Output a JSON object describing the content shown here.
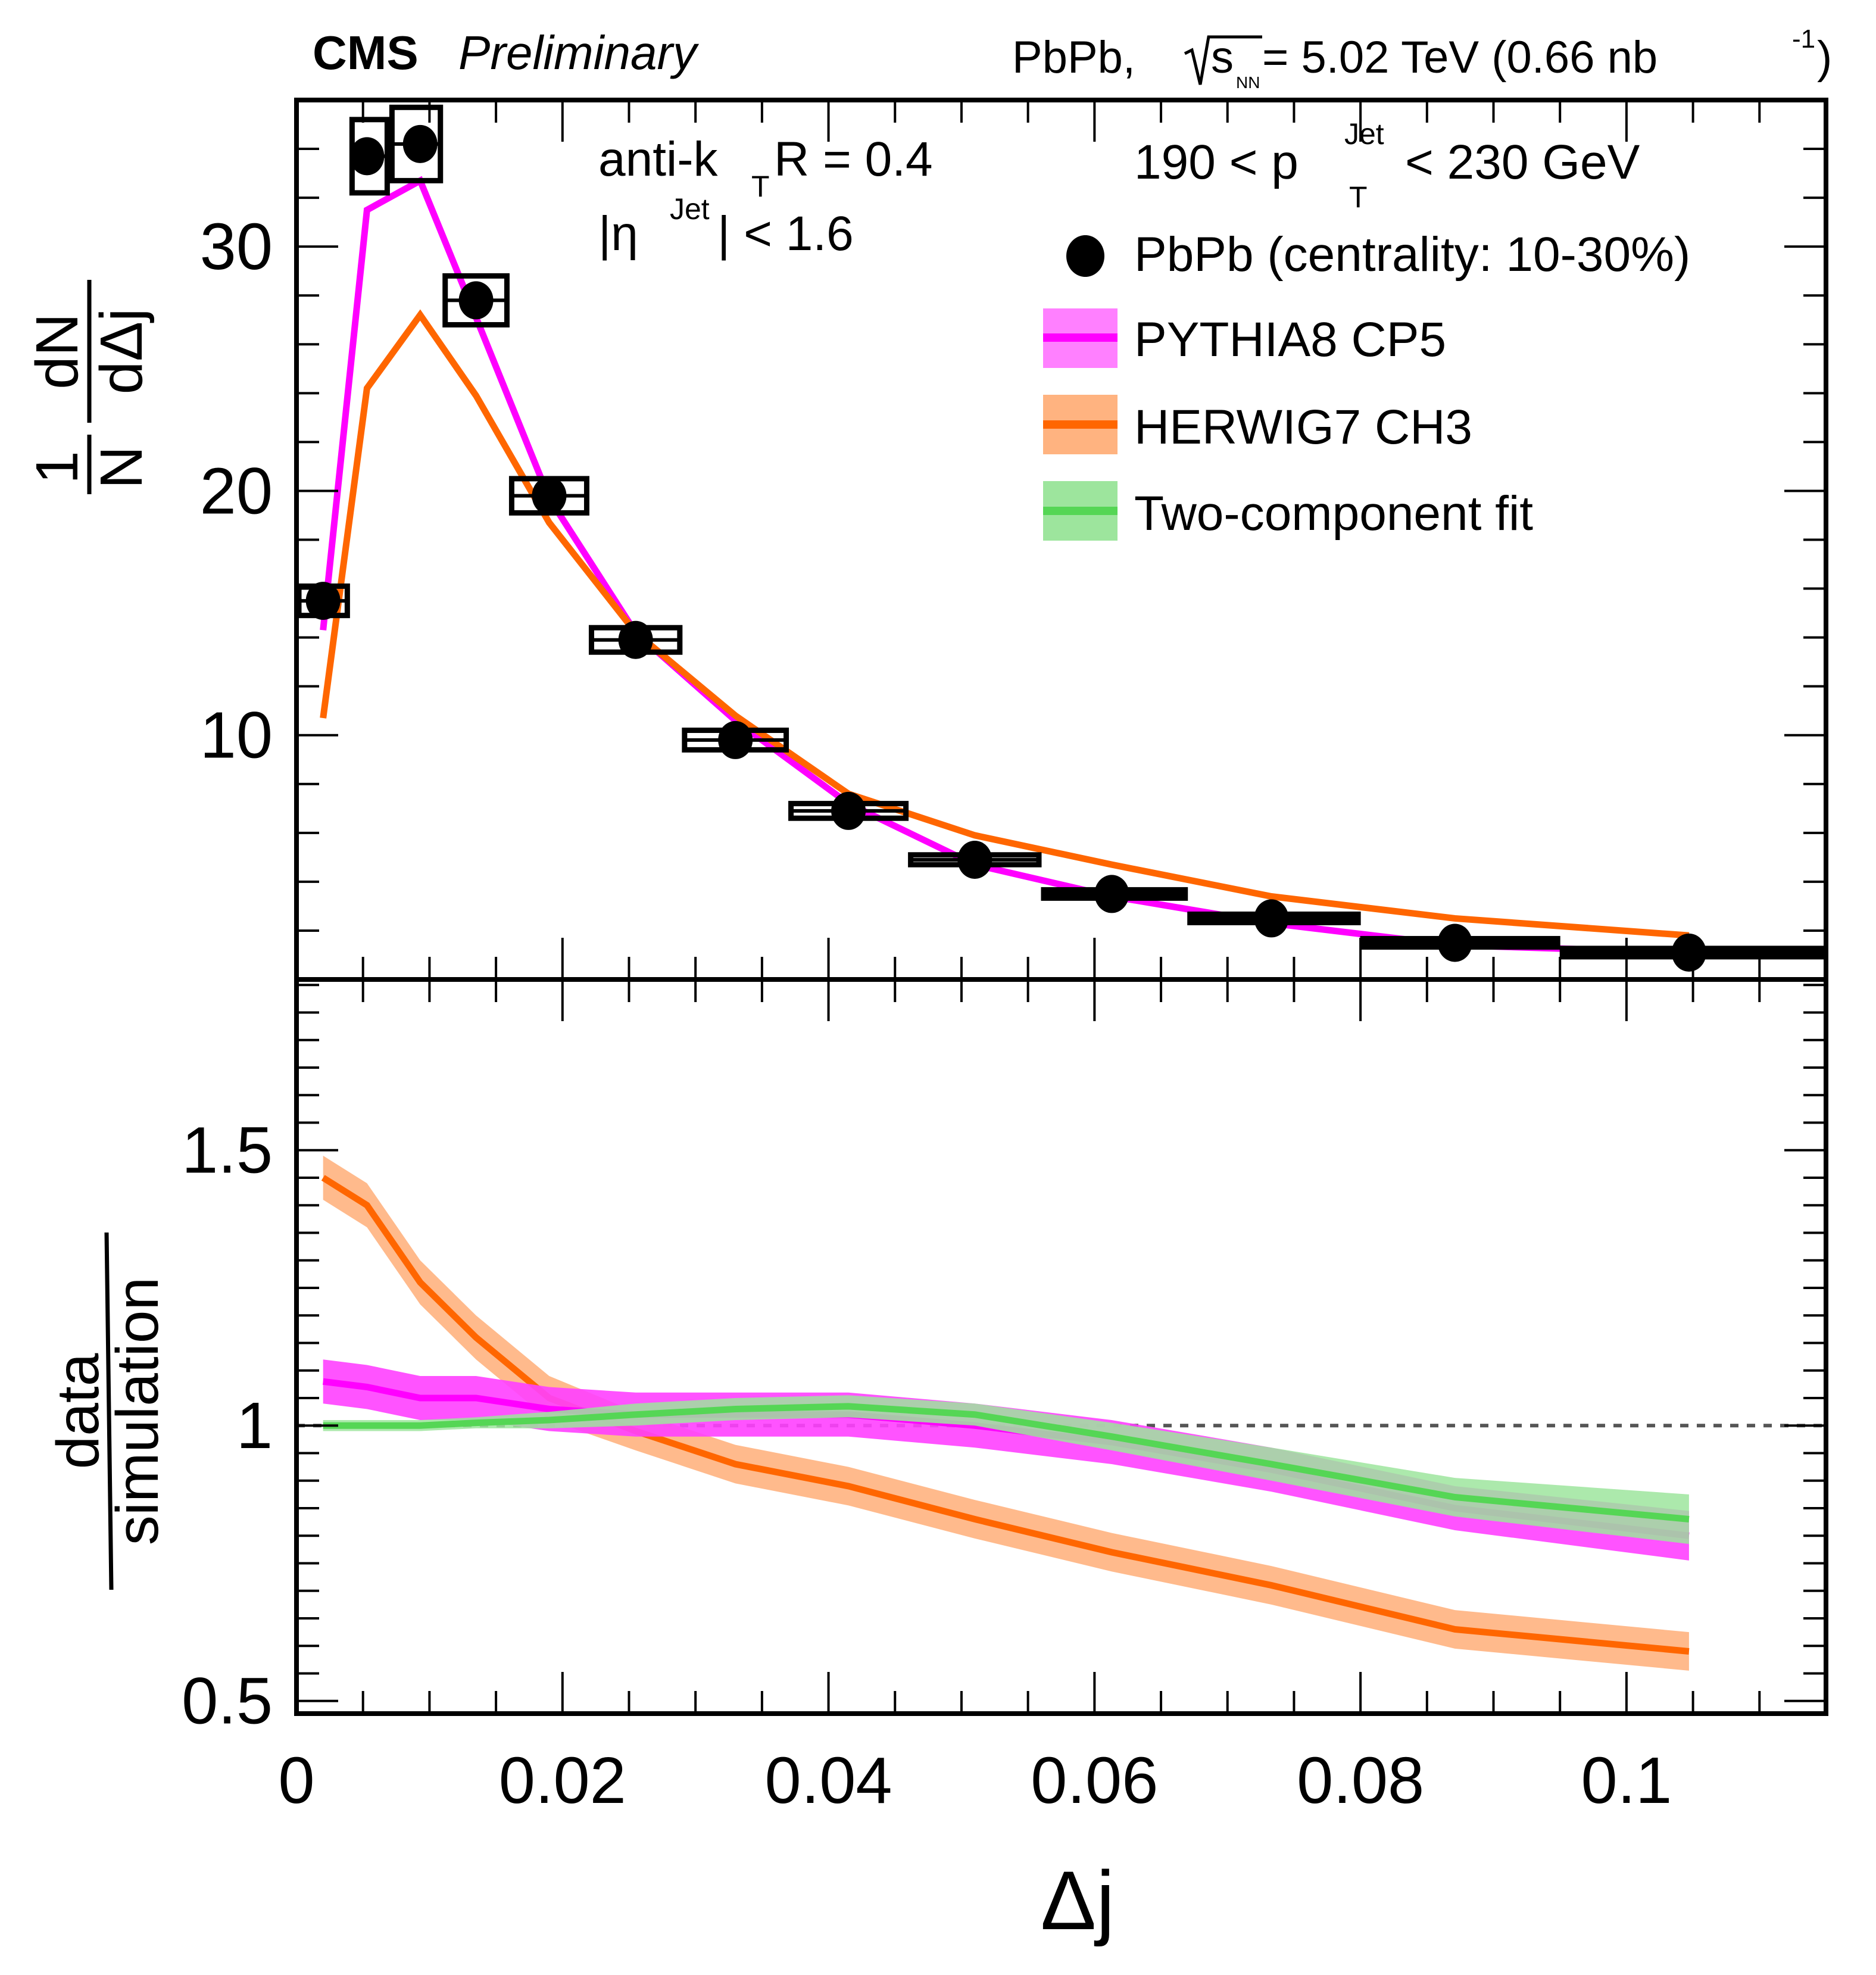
{
  "header": {
    "experiment": "CMS",
    "status": "Preliminary",
    "collision": "PbPb, ",
    "sqrt_s_symbol": "s",
    "sqrt_s_sub": "NN",
    "energy": " = 5.02 TeV (0.66 nb",
    "lumi_sup": "-1",
    "lumi_close": ")"
  },
  "annotations": {
    "algo_prefix": "anti-k",
    "algo_sub": "T",
    "algo_suffix": " R = 0.4",
    "eta_prefix": "|η",
    "eta_sup": "Jet",
    "eta_suffix": "| < 1.6",
    "pt_prefix": "190 < p",
    "pt_sup": "Jet",
    "pt_sub": "T",
    "pt_suffix": " < 230 GeV"
  },
  "legend": [
    {
      "label": "PbPb (centrality: 10-30%)",
      "kind": "marker",
      "color": "#000000"
    },
    {
      "label": "PYTHIA8 CP5",
      "kind": "band",
      "color": "#ff00ff",
      "band_color": "#ff80ff"
    },
    {
      "label": "HERWIG7 CH3",
      "kind": "band",
      "color": "#ff6600",
      "band_color": "#ffb380"
    },
    {
      "label": "Two-component fit",
      "kind": "band",
      "color": "#55d655",
      "band_color": "#9de59d"
    }
  ],
  "chart_data": [
    {
      "type": "scatter",
      "panel": "upper",
      "title": "",
      "xlabel": "Δj",
      "ylabel_num": "1",
      "ylabel_den": "N",
      "ylabel_num2": "dN",
      "ylabel_den2": "dΔj",
      "xlim": [
        0,
        0.115
      ],
      "ylim": [
        0,
        36
      ],
      "yticks": [
        10,
        20,
        30
      ],
      "ytick_labels": [
        "10",
        "20",
        "30"
      ],
      "legend_position": "top-right",
      "bin_edges": [
        0,
        0.004,
        0.007,
        0.011,
        0.016,
        0.022,
        0.029,
        0.037,
        0.046,
        0.056,
        0.067,
        0.08,
        0.095,
        0.115
      ],
      "x": [
        0.002,
        0.0053,
        0.0093,
        0.0135,
        0.019,
        0.0255,
        0.033,
        0.0415,
        0.051,
        0.0613,
        0.0733,
        0.0871,
        0.1047
      ],
      "series": [
        {
          "name": "PbPb (centrality: 10-30%)",
          "kind": "data",
          "values": [
            15.5,
            33.7,
            34.2,
            27.8,
            19.8,
            13.9,
            9.8,
            6.9,
            4.9,
            3.5,
            2.5,
            1.5,
            1.1
          ],
          "syst": [
            0.6,
            1.5,
            1.5,
            1.0,
            0.7,
            0.5,
            0.4,
            0.3,
            0.2,
            0.15,
            0.12,
            0.1,
            0.08
          ]
        },
        {
          "name": "PYTHIA8 CP5",
          "kind": "line",
          "color": "#ff00ff",
          "values": [
            14.3,
            31.5,
            32.7,
            27.1,
            19.7,
            14.2,
            10.6,
            7.2,
            4.7,
            3.4,
            2.3,
            1.4,
            1.1
          ]
        },
        {
          "name": "HERWIG7 CH3",
          "kind": "line",
          "color": "#ff6600",
          "values": [
            10.7,
            24.2,
            27.2,
            23.9,
            18.7,
            14.2,
            10.8,
            7.6,
            5.9,
            4.7,
            3.4,
            2.5,
            1.8
          ]
        }
      ]
    },
    {
      "type": "area",
      "panel": "lower",
      "xlabel": "Δj",
      "ylabel_num": "data",
      "ylabel_den": "simulation",
      "xlim": [
        0,
        0.115
      ],
      "ylim": [
        0.477,
        1.81
      ],
      "yticks": [
        0.5,
        1,
        1.5
      ],
      "ytick_labels": [
        "0.5",
        "1",
        "1.5"
      ],
      "xticks": [
        0,
        0.02,
        0.04,
        0.06,
        0.08,
        0.1
      ],
      "xtick_labels": [
        "0",
        "0.02",
        "0.04",
        "0.06",
        "0.08",
        "0.1"
      ],
      "reference_line": 1,
      "x": [
        0.002,
        0.0053,
        0.0093,
        0.0135,
        0.019,
        0.0255,
        0.033,
        0.0415,
        0.051,
        0.0613,
        0.0733,
        0.0871,
        0.1047
      ],
      "series": [
        {
          "name": "HERWIG7 CH3",
          "color": "#ff6600",
          "band_color": "#ffb380",
          "values": [
            1.45,
            1.4,
            1.26,
            1.16,
            1.05,
            0.99,
            0.93,
            0.89,
            0.83,
            0.77,
            0.71,
            0.63,
            0.59
          ],
          "unc": [
            0.04,
            0.04,
            0.04,
            0.04,
            0.04,
            0.035,
            0.035,
            0.035,
            0.035,
            0.035,
            0.035,
            0.035,
            0.035
          ]
        },
        {
          "name": "PYTHIA8 CP5",
          "color": "#ff00ff",
          "band_color": "#ff40ff",
          "values": [
            1.08,
            1.07,
            1.05,
            1.05,
            1.03,
            1.02,
            1.02,
            1.02,
            1.0,
            0.97,
            0.92,
            0.85,
            0.8
          ],
          "unc": [
            0.04,
            0.04,
            0.04,
            0.04,
            0.04,
            0.04,
            0.04,
            0.04,
            0.04,
            0.04,
            0.04,
            0.04,
            0.045
          ]
        },
        {
          "name": "Two-component fit",
          "color": "#55d655",
          "band_color": "#9de59d",
          "values": [
            1.0,
            1.0,
            1.0,
            1.005,
            1.01,
            1.02,
            1.03,
            1.035,
            1.02,
            0.98,
            0.93,
            0.87,
            0.83
          ],
          "unc": [
            0.01,
            0.01,
            0.01,
            0.01,
            0.015,
            0.02,
            0.02,
            0.02,
            0.02,
            0.025,
            0.03,
            0.035,
            0.045
          ]
        }
      ]
    }
  ]
}
